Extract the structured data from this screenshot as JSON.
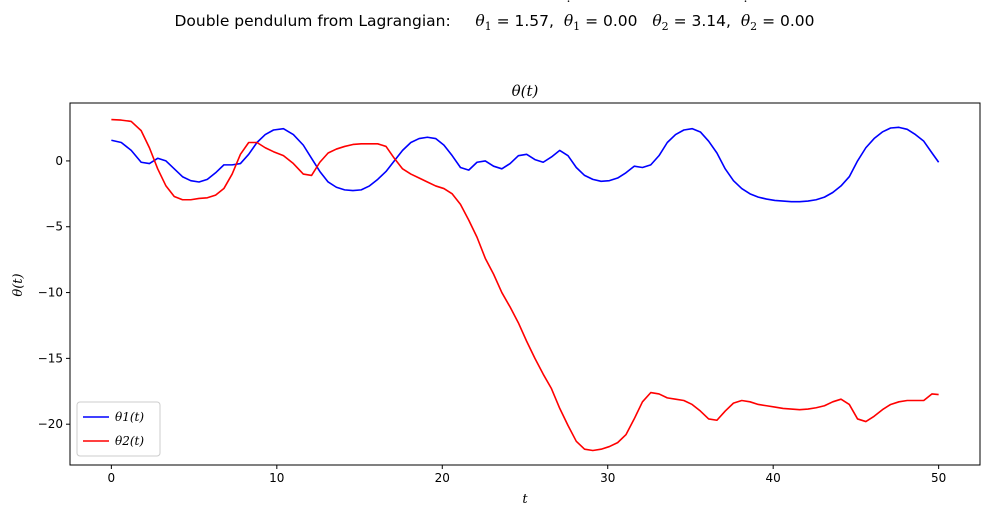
{
  "figure": {
    "suptitle_text": "Double pendulum from Lagrangian:",
    "th1_val": "= 1.57,",
    "th1dot_val": "= 0.00",
    "th2_val": "= 3.14,",
    "th2dot_val": "= 0.00"
  },
  "chart_data": {
    "type": "line",
    "title": "θ(t)",
    "xlabel": "t",
    "ylabel": "θ(t)",
    "xlim": [
      -2.5,
      52.5
    ],
    "ylim": [
      -23.1,
      4.4
    ],
    "xticks": [
      0,
      10,
      20,
      30,
      40,
      50
    ],
    "yticks": [
      0,
      -5,
      -10,
      -15,
      -20
    ],
    "legend": "lower-left",
    "grid": false,
    "series": [
      {
        "name": "θ1(t)",
        "color": "#0000ff",
        "x": [
          0,
          0.6,
          1.2,
          1.8,
          2.3,
          2.8,
          3.3,
          3.8,
          4.3,
          4.8,
          5.3,
          5.8,
          6.3,
          6.8,
          7.3,
          7.8,
          8.3,
          8.8,
          9.3,
          9.8,
          10.4,
          11.0,
          11.6,
          12.1,
          12.6,
          13.1,
          13.6,
          14.1,
          14.6,
          15.1,
          15.6,
          16.1,
          16.6,
          17.1,
          17.6,
          18.1,
          18.6,
          19.1,
          19.6,
          20.1,
          20.6,
          21.1,
          21.6,
          22.1,
          22.6,
          23.1,
          23.6,
          24.1,
          24.6,
          25.1,
          25.6,
          26.1,
          26.6,
          27.1,
          27.6,
          28.1,
          28.6,
          29.1,
          29.6,
          30.1,
          30.6,
          31.1,
          31.6,
          32.1,
          32.6,
          33.1,
          33.6,
          34.1,
          34.6,
          35.1,
          35.6,
          36.1,
          36.6,
          37.1,
          37.6,
          38.1,
          38.6,
          39.1,
          39.6,
          40.1,
          40.6,
          41.1,
          41.6,
          42.1,
          42.6,
          43.1,
          43.6,
          44.1,
          44.6,
          45.1,
          45.6,
          46.1,
          46.6,
          47.1,
          47.6,
          48.1,
          48.6,
          49.1,
          49.6,
          50.0
        ],
        "y": [
          1.57,
          1.4,
          0.8,
          -0.1,
          -0.2,
          0.2,
          0.0,
          -0.6,
          -1.2,
          -1.5,
          -1.6,
          -1.4,
          -0.9,
          -0.3,
          -0.3,
          -0.2,
          0.5,
          1.4,
          2.0,
          2.35,
          2.45,
          2.0,
          1.2,
          0.2,
          -0.8,
          -1.6,
          -2.0,
          -2.2,
          -2.25,
          -2.2,
          -1.9,
          -1.4,
          -0.8,
          0.0,
          0.8,
          1.4,
          1.7,
          1.8,
          1.7,
          1.2,
          0.4,
          -0.5,
          -0.7,
          -0.1,
          0.0,
          -0.4,
          -0.6,
          -0.2,
          0.4,
          0.5,
          0.1,
          -0.1,
          0.3,
          0.8,
          0.4,
          -0.5,
          -1.1,
          -1.4,
          -1.55,
          -1.5,
          -1.3,
          -0.9,
          -0.4,
          -0.5,
          -0.3,
          0.4,
          1.4,
          2.0,
          2.35,
          2.45,
          2.2,
          1.5,
          0.6,
          -0.6,
          -1.5,
          -2.1,
          -2.5,
          -2.75,
          -2.9,
          -3.0,
          -3.05,
          -3.1,
          -3.1,
          -3.05,
          -2.95,
          -2.75,
          -2.4,
          -1.9,
          -1.2,
          0.0,
          1.0,
          1.7,
          2.2,
          2.5,
          2.55,
          2.4,
          2.0,
          1.5,
          0.6,
          -0.1
        ]
      },
      {
        "name": "θ2(t)",
        "color": "#ff0000",
        "x": [
          0,
          0.6,
          1.2,
          1.8,
          2.3,
          2.8,
          3.3,
          3.8,
          4.3,
          4.8,
          5.3,
          5.8,
          6.3,
          6.8,
          7.3,
          7.8,
          8.3,
          8.8,
          9.3,
          9.8,
          10.4,
          11.0,
          11.6,
          12.1,
          12.6,
          13.1,
          13.6,
          14.1,
          14.6,
          15.1,
          15.6,
          16.1,
          16.6,
          17.1,
          17.6,
          18.1,
          18.6,
          19.1,
          19.6,
          20.1,
          20.6,
          21.1,
          21.6,
          22.1,
          22.6,
          23.1,
          23.6,
          24.1,
          24.6,
          25.1,
          25.6,
          26.1,
          26.6,
          27.1,
          27.6,
          28.1,
          28.6,
          29.1,
          29.6,
          30.1,
          30.6,
          31.1,
          31.6,
          32.1,
          32.6,
          33.1,
          33.6,
          34.1,
          34.6,
          35.1,
          35.6,
          36.1,
          36.6,
          37.1,
          37.6,
          38.1,
          38.6,
          39.1,
          39.6,
          40.1,
          40.6,
          41.1,
          41.6,
          42.1,
          42.6,
          43.1,
          43.6,
          44.1,
          44.6,
          45.1,
          45.6,
          46.1,
          46.6,
          47.1,
          47.6,
          48.1,
          48.6,
          49.1,
          49.6,
          50.0
        ],
        "y": [
          3.14,
          3.1,
          3.0,
          2.3,
          1.0,
          -0.6,
          -1.9,
          -2.7,
          -2.95,
          -2.95,
          -2.85,
          -2.8,
          -2.6,
          -2.1,
          -1.0,
          0.5,
          1.4,
          1.4,
          1.0,
          0.7,
          0.4,
          -0.2,
          -1.0,
          -1.1,
          -0.1,
          0.6,
          0.9,
          1.1,
          1.25,
          1.3,
          1.3,
          1.3,
          1.1,
          0.2,
          -0.6,
          -1.0,
          -1.3,
          -1.6,
          -1.9,
          -2.1,
          -2.5,
          -3.3,
          -4.5,
          -5.8,
          -7.4,
          -8.6,
          -10.0,
          -11.1,
          -12.3,
          -13.7,
          -15.0,
          -16.2,
          -17.3,
          -18.8,
          -20.1,
          -21.3,
          -21.9,
          -22.0,
          -21.9,
          -21.7,
          -21.4,
          -20.8,
          -19.6,
          -18.3,
          -17.6,
          -17.7,
          -18.0,
          -18.1,
          -18.2,
          -18.5,
          -19.0,
          -19.6,
          -19.7,
          -19.0,
          -18.4,
          -18.2,
          -18.3,
          -18.5,
          -18.6,
          -18.7,
          -18.8,
          -18.85,
          -18.9,
          -18.85,
          -18.75,
          -18.6,
          -18.3,
          -18.1,
          -18.5,
          -19.6,
          -19.8,
          -19.4,
          -18.9,
          -18.5,
          -18.3,
          -18.2,
          -18.2,
          -18.2,
          -17.7,
          -17.75
        ]
      }
    ]
  }
}
